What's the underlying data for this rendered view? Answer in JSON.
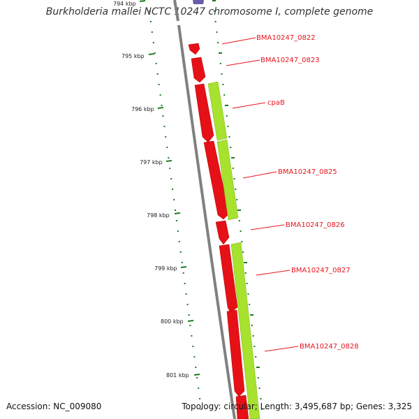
{
  "title": "Burkholderia mallei NCTC 10247 chromosome I, complete genome",
  "accession": "Accession: NC_009080",
  "summary": "Topology: circular; Length: 3,495,687 bp; Genes: 3,325",
  "colors": {
    "backbone": "#808080",
    "forward_cds": "#e61017",
    "reverse_cds": "#a6e22e",
    "tick": "#1f7a1f",
    "label": "#e8141c",
    "top_feature": "#6a5aa8"
  },
  "ticks": [
    "794 kbp",
    "795 kbp",
    "796 kbp",
    "797 kbp",
    "798 kbp",
    "799 kbp",
    "800 kbp",
    "801 kbp"
  ],
  "genes": [
    "BMA10247_0822",
    "BMA10247_0823",
    "cpaB",
    "BMA10247_0825",
    "BMA10247_0826",
    "BMA10247_0827",
    "BMA10247_0828"
  ]
}
